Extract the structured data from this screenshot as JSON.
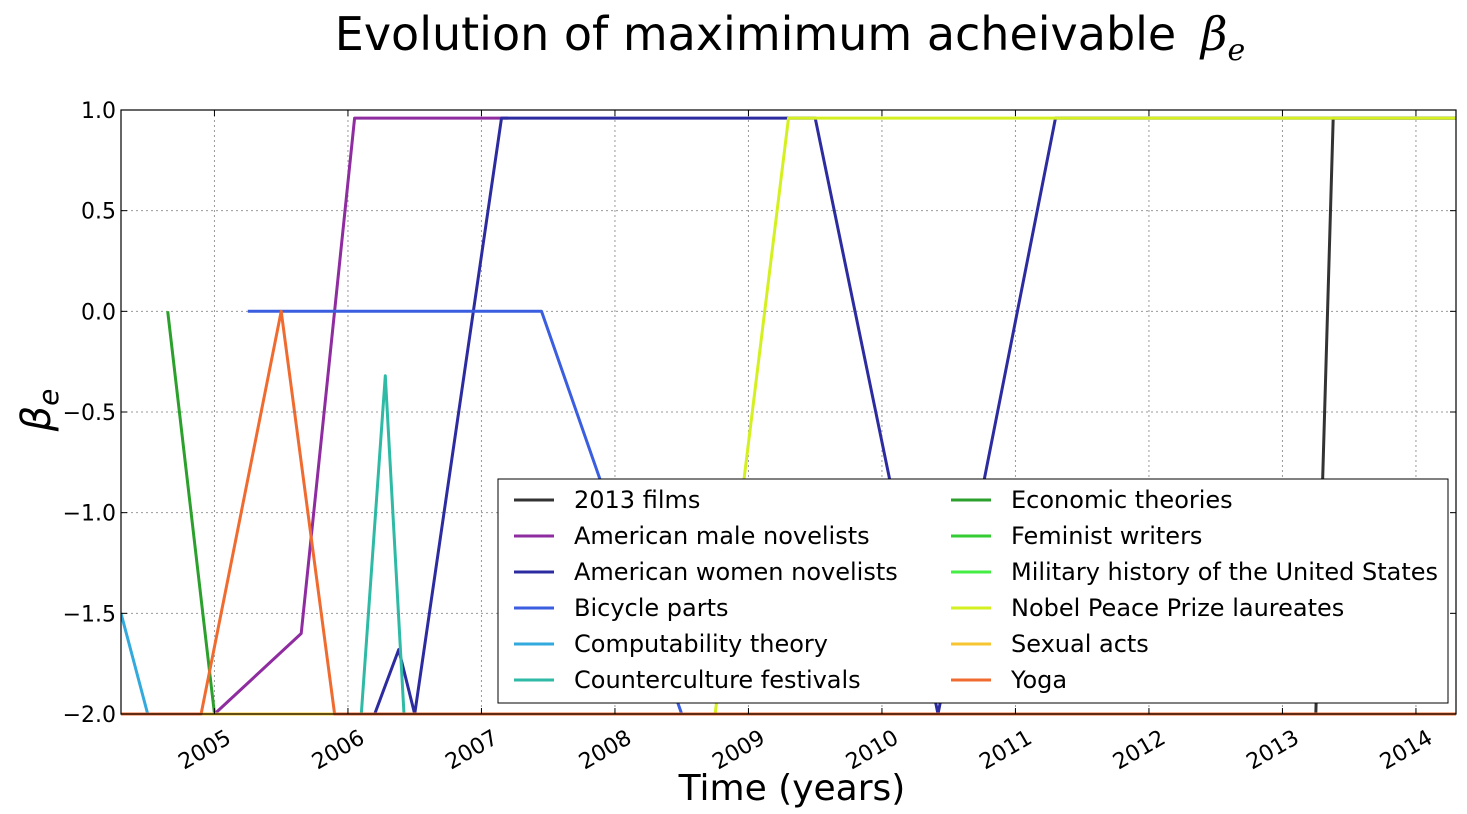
{
  "chart_data": {
    "type": "line",
    "title": "Evolution of maximimum acheivable",
    "title_symbol": "β",
    "title_symbol_sub": "e",
    "xlabel": "Time (years)",
    "ylabel_symbol": "β",
    "ylabel_symbol_sub": "e",
    "xlim": [
      2004.3,
      2014.3
    ],
    "ylim": [
      -2.0,
      1.0
    ],
    "grid": true,
    "legend_position": "lower-right",
    "x_ticks": [
      2005,
      2006,
      2007,
      2008,
      2009,
      2010,
      2011,
      2012,
      2013,
      2014
    ],
    "x_tick_labels": [
      "2005",
      "2006",
      "2007",
      "2008",
      "2009",
      "2010",
      "2011",
      "2012",
      "2013",
      "2014"
    ],
    "y_ticks": [
      1.0,
      0.5,
      0.0,
      -0.5,
      -1.0,
      -1.5,
      -2.0
    ],
    "y_tick_labels": [
      "1.0",
      "0.5",
      "0.0",
      "−0.5",
      "−1.0",
      "−1.5",
      "−2.0"
    ],
    "series": [
      {
        "name": "2013 films",
        "color": "#333333",
        "x": [
          2004.3,
          2013.25,
          2013.38,
          2014.3
        ],
        "y": [
          -2.0,
          -2.0,
          0.96,
          0.96
        ]
      },
      {
        "name": "American male novelists",
        "color": "#8e2ca0",
        "x": [
          2005.0,
          2005.65,
          2006.05,
          2007.2
        ],
        "y": [
          -2.0,
          -1.6,
          0.96,
          0.96
        ]
      },
      {
        "name": "American women novelists",
        "color": "#2c2ca0",
        "x": [
          2004.3,
          2006.2,
          2006.38,
          2006.5,
          2007.15,
          2009.5,
          2010.42,
          2011.3,
          2014.3
        ],
        "y": [
          -2.0,
          -2.0,
          -1.68,
          -2.0,
          0.96,
          0.96,
          -2.0,
          0.96,
          0.96
        ]
      },
      {
        "name": "Bicycle parts",
        "color": "#3b5ee0",
        "x": [
          2005.25,
          2007.45,
          2008.5,
          2014.3
        ],
        "y": [
          0.0,
          0.0,
          -2.0,
          -2.0
        ]
      },
      {
        "name": "Computability theory",
        "color": "#33aadd",
        "x": [
          2004.3,
          2004.5,
          2014.3
        ],
        "y": [
          -1.5,
          -2.0,
          -2.0
        ]
      },
      {
        "name": "Counterculture festivals",
        "color": "#2fbaa6",
        "x": [
          2006.1,
          2006.28,
          2006.42,
          2014.3
        ],
        "y": [
          -2.0,
          -0.32,
          -2.0,
          -2.0
        ]
      },
      {
        "name": "Economic theories",
        "color": "#2ca02c",
        "x": [
          2004.65,
          2005.0,
          2014.3
        ],
        "y": [
          0.0,
          -2.0,
          -2.0
        ]
      },
      {
        "name": "Feminist writers",
        "color": "#33cc33",
        "x": [
          2004.3,
          2014.3
        ],
        "y": [
          -2.0,
          -2.0
        ]
      },
      {
        "name": "Military history of the United States",
        "color": "#44ee44",
        "x": [
          2004.3,
          2014.3
        ],
        "y": [
          -2.0,
          -2.0
        ]
      },
      {
        "name": "Nobel Peace Prize laureates",
        "color": "#d4f020",
        "x": [
          2004.3,
          2008.75,
          2009.3,
          2014.3
        ],
        "y": [
          -2.0,
          -2.0,
          0.96,
          0.96
        ]
      },
      {
        "name": "Sexual acts",
        "color": "#f6c530",
        "x": [
          2004.3,
          2014.3
        ],
        "y": [
          -2.0,
          -2.0
        ]
      },
      {
        "name": "Yoga",
        "color": "#f06b30",
        "x": [
          2004.3,
          2004.9,
          2005.5,
          2005.9,
          2014.3
        ],
        "y": [
          -2.0,
          -2.0,
          0.0,
          -2.0,
          -2.0
        ]
      }
    ]
  }
}
